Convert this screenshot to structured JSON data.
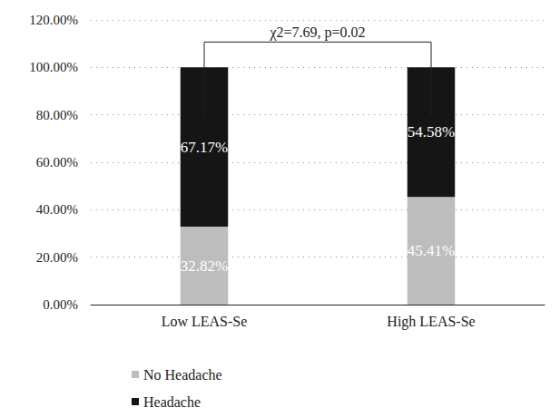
{
  "chart_data": {
    "type": "bar",
    "categories": [
      "Low LEAS-Se",
      "High LEAS-Se"
    ],
    "series": [
      {
        "name": "No Headache",
        "color": "#bdbdbd",
        "values": [
          32.82,
          45.41
        ],
        "value_labels": [
          "32.82%",
          "45.41%"
        ]
      },
      {
        "name": "Headache",
        "color": "#151515",
        "values": [
          67.17,
          54.58
        ],
        "value_labels": [
          "67.17%",
          "54.58%"
        ]
      }
    ],
    "ylim": [
      0,
      120
    ],
    "yticks": [
      {
        "value": 0,
        "label": "0.00%"
      },
      {
        "value": 20,
        "label": "20.00%"
      },
      {
        "value": 40,
        "label": "40.00%"
      },
      {
        "value": 60,
        "label": "60.00%"
      },
      {
        "value": 80,
        "label": "80.00%"
      },
      {
        "value": 100,
        "label": "100.00%"
      },
      {
        "value": 120,
        "label": "120.00%"
      }
    ],
    "stacked": true,
    "data_labels": true,
    "grid": true,
    "legend": "bottom-left",
    "annotations": [
      {
        "text": "χ2=7.69, p=0.02"
      }
    ]
  }
}
